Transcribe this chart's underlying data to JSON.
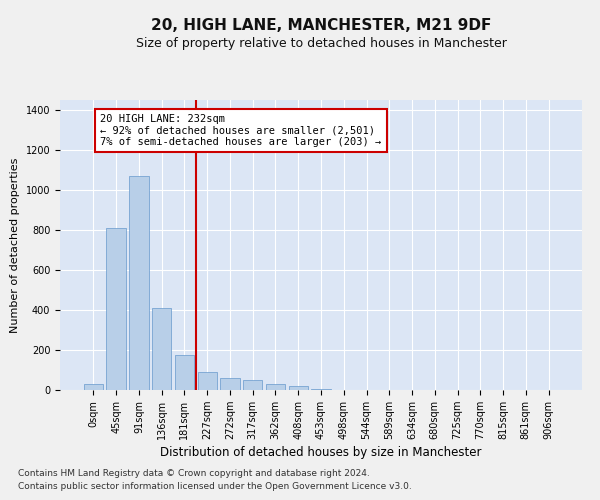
{
  "title": "20, HIGH LANE, MANCHESTER, M21 9DF",
  "subtitle": "Size of property relative to detached houses in Manchester",
  "xlabel": "Distribution of detached houses by size in Manchester",
  "ylabel": "Number of detached properties",
  "bar_color": "#b8cfe8",
  "bar_edge_color": "#6699cc",
  "background_color": "#dce6f5",
  "grid_color": "#ffffff",
  "vline_color": "#cc0000",
  "annotation_box_color": "#cc0000",
  "fig_background": "#f0f0f0",
  "categories": [
    "0sqm",
    "45sqm",
    "91sqm",
    "136sqm",
    "181sqm",
    "227sqm",
    "272sqm",
    "317sqm",
    "362sqm",
    "408sqm",
    "453sqm",
    "498sqm",
    "544sqm",
    "589sqm",
    "634sqm",
    "680sqm",
    "725sqm",
    "770sqm",
    "815sqm",
    "861sqm",
    "906sqm"
  ],
  "values": [
    28,
    810,
    1070,
    410,
    175,
    90,
    60,
    48,
    32,
    18,
    5,
    0,
    0,
    0,
    0,
    0,
    0,
    0,
    0,
    0,
    0
  ],
  "ylim": [
    0,
    1450
  ],
  "yticks": [
    0,
    200,
    400,
    600,
    800,
    1000,
    1200,
    1400
  ],
  "vline_x": 4.5,
  "annotation_text": "20 HIGH LANE: 232sqm\n← 92% of detached houses are smaller (2,501)\n7% of semi-detached houses are larger (203) →",
  "footnote1": "Contains HM Land Registry data © Crown copyright and database right 2024.",
  "footnote2": "Contains public sector information licensed under the Open Government Licence v3.0.",
  "title_fontsize": 11,
  "subtitle_fontsize": 9,
  "xlabel_fontsize": 8.5,
  "ylabel_fontsize": 8,
  "tick_fontsize": 7,
  "annotation_fontsize": 7.5,
  "footnote_fontsize": 6.5
}
